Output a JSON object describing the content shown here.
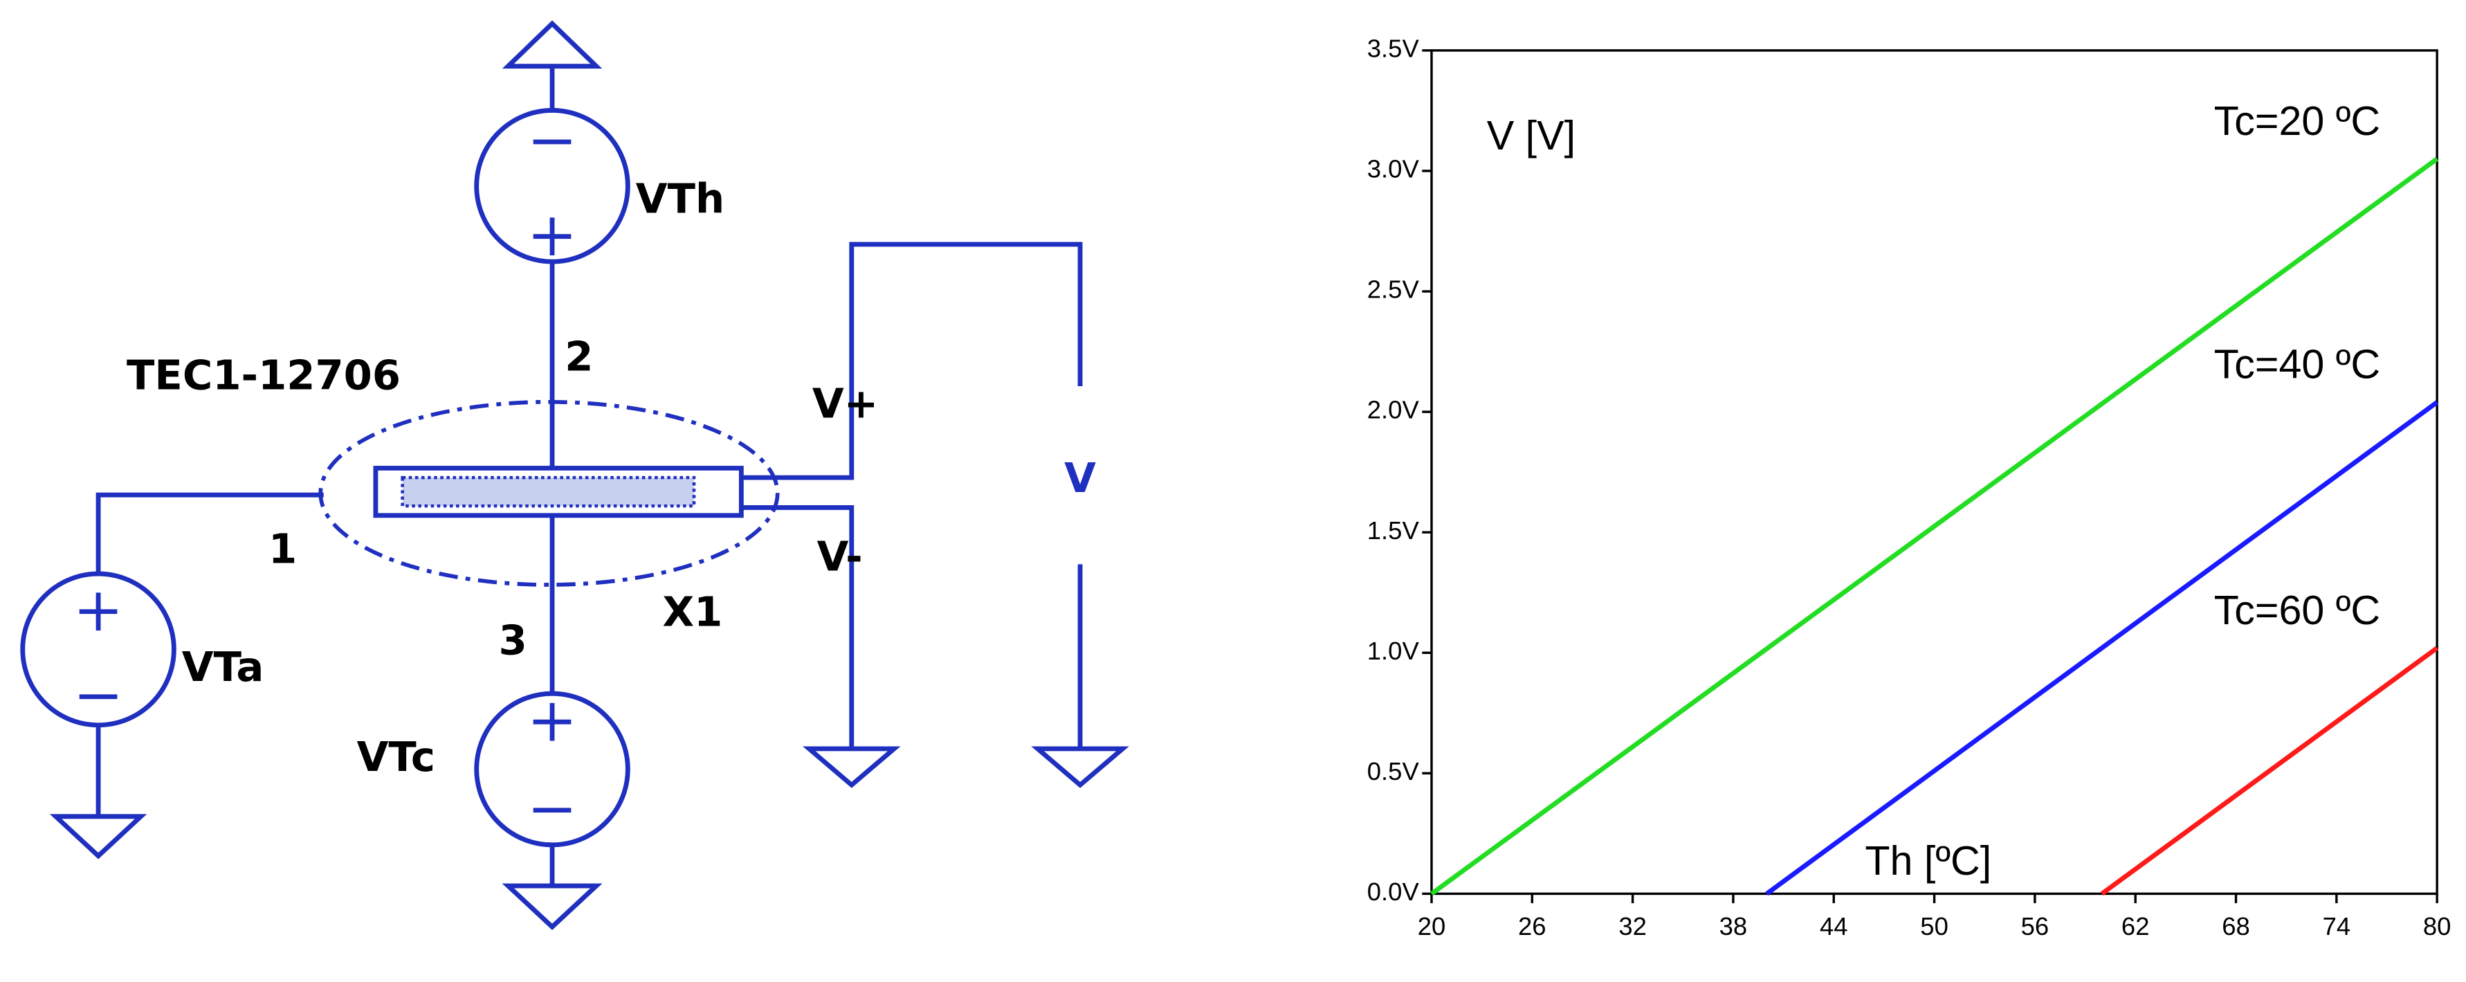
{
  "schematic": {
    "part": "TEC1-12706",
    "instance": "X1",
    "sources": [
      "VTh",
      "VTa",
      "VTc"
    ],
    "nodes": [
      "2",
      "1",
      "3"
    ],
    "pins": [
      "V+",
      "V-"
    ],
    "probe": "V"
  },
  "chart_data": {
    "type": "line",
    "y_label": "V [V]",
    "x_label": "Th [ºC]",
    "xlim": [
      20,
      80
    ],
    "xticks": [
      20,
      26,
      32,
      38,
      44,
      50,
      56,
      62,
      68,
      74,
      80
    ],
    "ylim": [
      0,
      3.5
    ],
    "yticks": [
      {
        "value": 0,
        "label": "0.0V"
      },
      {
        "value": 0.5,
        "label": "0.5V"
      },
      {
        "value": 1,
        "label": "1.0V"
      },
      {
        "value": 1.5,
        "label": "1.5V"
      },
      {
        "value": 2,
        "label": "2.0V"
      },
      {
        "value": 2.5,
        "label": "2.5V"
      },
      {
        "value": 3,
        "label": "3.0V"
      },
      {
        "value": 3.5,
        "label": "3.5V"
      }
    ],
    "grid": false,
    "series": [
      {
        "name": "Tc=20 ºC",
        "color": "#22dd22",
        "x": [
          20,
          80
        ],
        "values": [
          0,
          3.05
        ]
      },
      {
        "name": "Tc=40 ºC",
        "color": "#1a1aff",
        "x": [
          40,
          80
        ],
        "values": [
          0,
          2.04
        ]
      },
      {
        "name": "Tc=60 ºC",
        "color": "#ff1a1a",
        "x": [
          60,
          80
        ],
        "values": [
          0,
          1.02
        ]
      }
    ]
  }
}
